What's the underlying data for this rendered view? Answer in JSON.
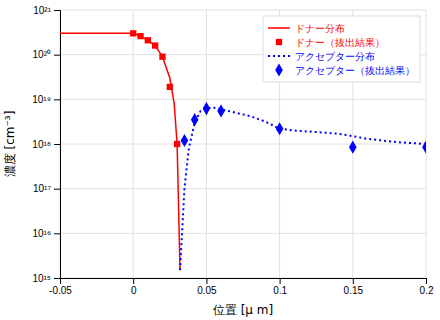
{
  "chart_data": {
    "type": "line",
    "xlabel": "位置 [μ m]",
    "ylabel": "濃度 [cm⁻³]",
    "log": "y",
    "grid": true,
    "legend": "upper right",
    "xlim": [
      -0.05,
      0.2
    ],
    "ylim": [
      1000000000000000.0,
      1e+21
    ],
    "xticks": [
      -0.05,
      0,
      0.05,
      0.1,
      0.15,
      0.2
    ],
    "yticks": [
      {
        "value": 1000000000000000.0,
        "label": "10¹⁵"
      },
      {
        "value": 1e+16,
        "label": "10¹⁶"
      },
      {
        "value": 1e+17,
        "label": "10¹⁷"
      },
      {
        "value": 1e+18,
        "label": "10¹⁸"
      },
      {
        "value": 1e+19,
        "label": "10¹⁹"
      },
      {
        "value": 1e+20,
        "label": "10²⁰"
      },
      {
        "value": 1e+21,
        "label": "10²¹"
      }
    ],
    "series": [
      {
        "name": "ドナー分布",
        "type": "line",
        "color": "#ff0000",
        "line_style": "solid",
        "x": [
          -0.05,
          -0.04,
          -0.03,
          -0.02,
          -0.01,
          0.0,
          0.005,
          0.01,
          0.015,
          0.02,
          0.025,
          0.028,
          0.03,
          0.032
        ],
        "values": [
          3e+20,
          3e+20,
          3e+20,
          3e+20,
          3e+20,
          3e+20,
          2.6e+20,
          2.1e+20,
          1.6e+20,
          9e+19,
          3e+19,
          8e+18,
          1e+18,
          1500000000000000.0
        ]
      },
      {
        "name": "ドナー（抜出結果）",
        "type": "scatter",
        "color": "#ff0000",
        "marker": "square",
        "x": [
          0.0,
          0.005,
          0.01,
          0.015,
          0.02,
          0.025,
          0.03
        ],
        "values": [
          3e+20,
          2.6e+20,
          2.1e+20,
          1.6e+20,
          9e+19,
          1.9e+19,
          1e+18
        ]
      },
      {
        "name": "アクセプター分布",
        "type": "line",
        "color": "#0000ff",
        "line_style": "dotted",
        "x": [
          0.032,
          0.035,
          0.038,
          0.042,
          0.046,
          0.05,
          0.055,
          0.06,
          0.065,
          0.07,
          0.08,
          0.09,
          0.1,
          0.11,
          0.12,
          0.13,
          0.14,
          0.15,
          0.16,
          0.17,
          0.18,
          0.19,
          0.2
        ],
        "values": [
          1500000000000000.0,
          1e+17,
          8e+17,
          3e+18,
          5.5e+18,
          6.2e+18,
          6.5e+18,
          6e+18,
          5.5e+18,
          5e+18,
          4.2e+18,
          3.2e+18,
          2.2e+18,
          2e+18,
          1.9e+18,
          1.8e+18,
          1.7e+18,
          1.5e+18,
          1.3e+18,
          1.2e+18,
          1.1e+18,
          1.05e+18,
          1e+18
        ]
      },
      {
        "name": "アクセプター（抜出結果）",
        "type": "scatter",
        "color": "#0000ff",
        "marker": "diamond",
        "x": [
          0.035,
          0.042,
          0.05,
          0.06,
          0.1,
          0.15,
          0.2
        ],
        "values": [
          1.2e+18,
          3.5e+18,
          6.2e+18,
          5.5e+18,
          2.2e+18,
          8.5e+17,
          8.5e+17
        ]
      }
    ]
  }
}
